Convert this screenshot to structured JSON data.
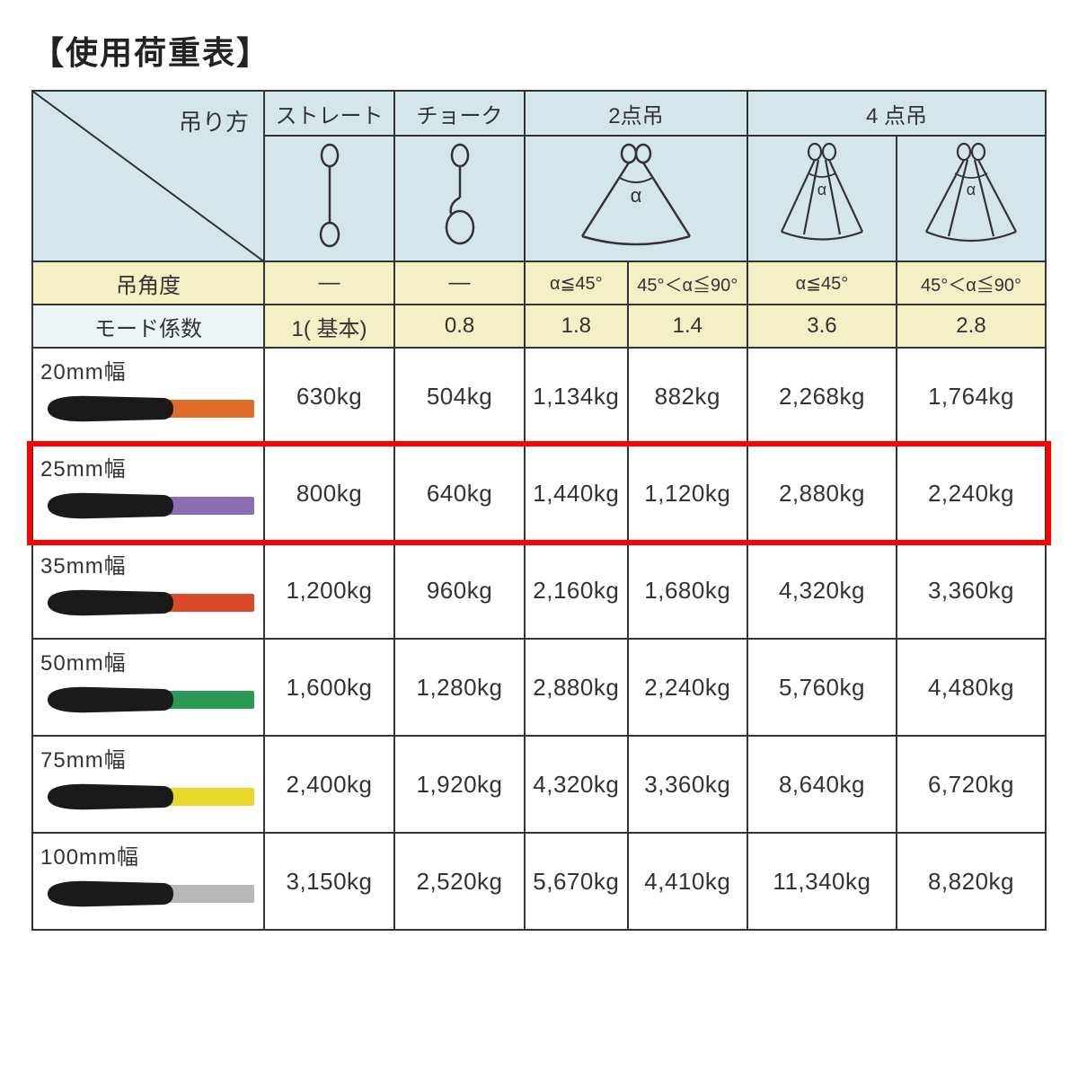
{
  "title": "【使用荷重表】",
  "header": {
    "diag_label": "吊り方",
    "methods": {
      "straight": "ストレート",
      "choke": "チョーク",
      "two_point": "2点吊",
      "four_point": "4 点吊"
    },
    "angle_row_label": "吊角度",
    "mode_row_label": "モード係数",
    "angles": {
      "dash": "―",
      "le45": "α≦45°",
      "r45_90": "45°＜α≦90°"
    },
    "modes": {
      "base": "1( 基本)",
      "m08": "0.8",
      "m18": "1.8",
      "m14": "1.4",
      "m36": "3.6",
      "m28": "2.8"
    }
  },
  "rows": [
    {
      "label": "20mm幅",
      "strap_color": "#e06a28",
      "vals": [
        "630kg",
        "504kg",
        "1,134kg",
        "882kg",
        "2,268kg",
        "1,764kg"
      ],
      "highlight": false
    },
    {
      "label": "25mm幅",
      "strap_color": "#8a6fb5",
      "vals": [
        "800kg",
        "640kg",
        "1,440kg",
        "1,120kg",
        "2,880kg",
        "2,240kg"
      ],
      "highlight": true
    },
    {
      "label": "35mm幅",
      "strap_color": "#d84a2a",
      "vals": [
        "1,200kg",
        "960kg",
        "2,160kg",
        "1,680kg",
        "4,320kg",
        "3,360kg"
      ],
      "highlight": false
    },
    {
      "label": "50mm幅",
      "strap_color": "#2a9a55",
      "vals": [
        "1,600kg",
        "1,280kg",
        "2,880kg",
        "2,240kg",
        "5,760kg",
        "4,480kg"
      ],
      "highlight": false
    },
    {
      "label": "75mm幅",
      "strap_color": "#e8d82a",
      "vals": [
        "2,400kg",
        "1,920kg",
        "4,320kg",
        "3,360kg",
        "8,640kg",
        "6,720kg"
      ],
      "highlight": false
    },
    {
      "label": "100mm幅",
      "strap_color": "#b8b8b8",
      "vals": [
        "3,150kg",
        "2,520kg",
        "5,670kg",
        "4,410kg",
        "11,340kg",
        "8,820kg"
      ],
      "highlight": false
    }
  ],
  "colors": {
    "highlight_border": "#ff0000",
    "sleeve": "#1a1a1a"
  }
}
